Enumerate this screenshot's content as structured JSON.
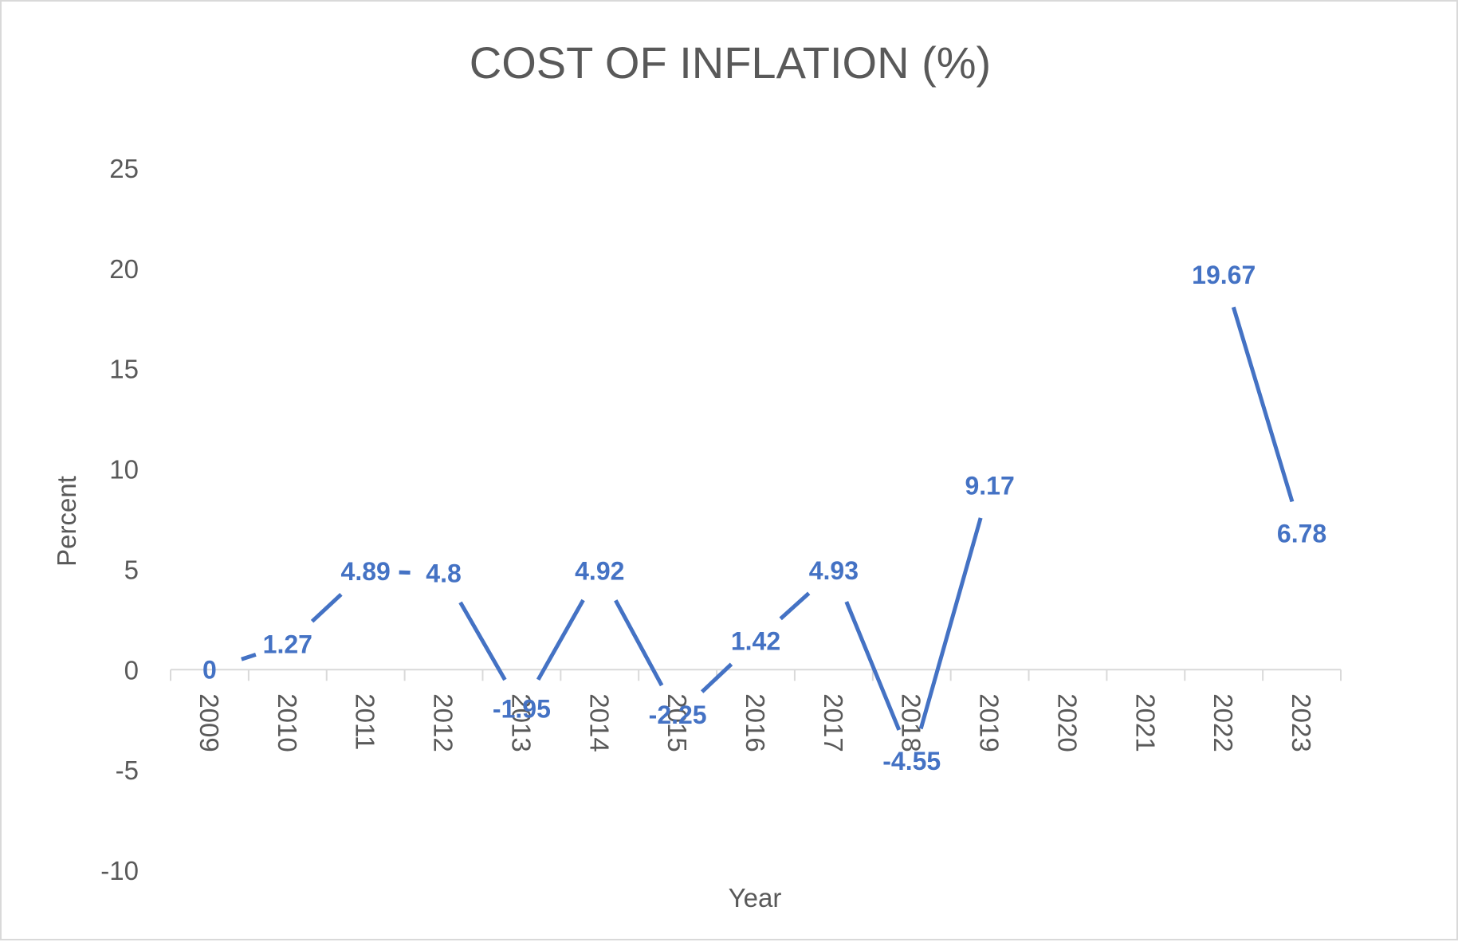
{
  "chart_data": {
    "type": "line",
    "title": "COST OF INFLATION (%)",
    "xlabel": "Year",
    "ylabel": "Percent",
    "categories": [
      "2009",
      "2010",
      "2011",
      "2012",
      "2013",
      "2014",
      "2015",
      "2016",
      "2017",
      "2018",
      "2019",
      "2020",
      "2021",
      "2022",
      "2023"
    ],
    "series": [
      {
        "values": [
          0,
          1.27,
          4.89,
          4.8,
          -1.95,
          4.92,
          -2.25,
          1.42,
          4.93,
          -4.55,
          9.17,
          null,
          null,
          19.67,
          6.78
        ],
        "labels": [
          "0",
          "1.27",
          "4.89",
          "4.8",
          "-1.95",
          "4.92",
          "-2.25",
          "1.42",
          "4.93",
          "-4.55",
          "9.17",
          "",
          "",
          "19.67",
          "6.78"
        ],
        "color": "#4472c4"
      }
    ],
    "ylim": [
      -10,
      25
    ],
    "yticks": [
      -10,
      -5,
      0,
      5,
      10,
      15,
      20,
      25
    ],
    "grid": false,
    "legend": "none"
  }
}
